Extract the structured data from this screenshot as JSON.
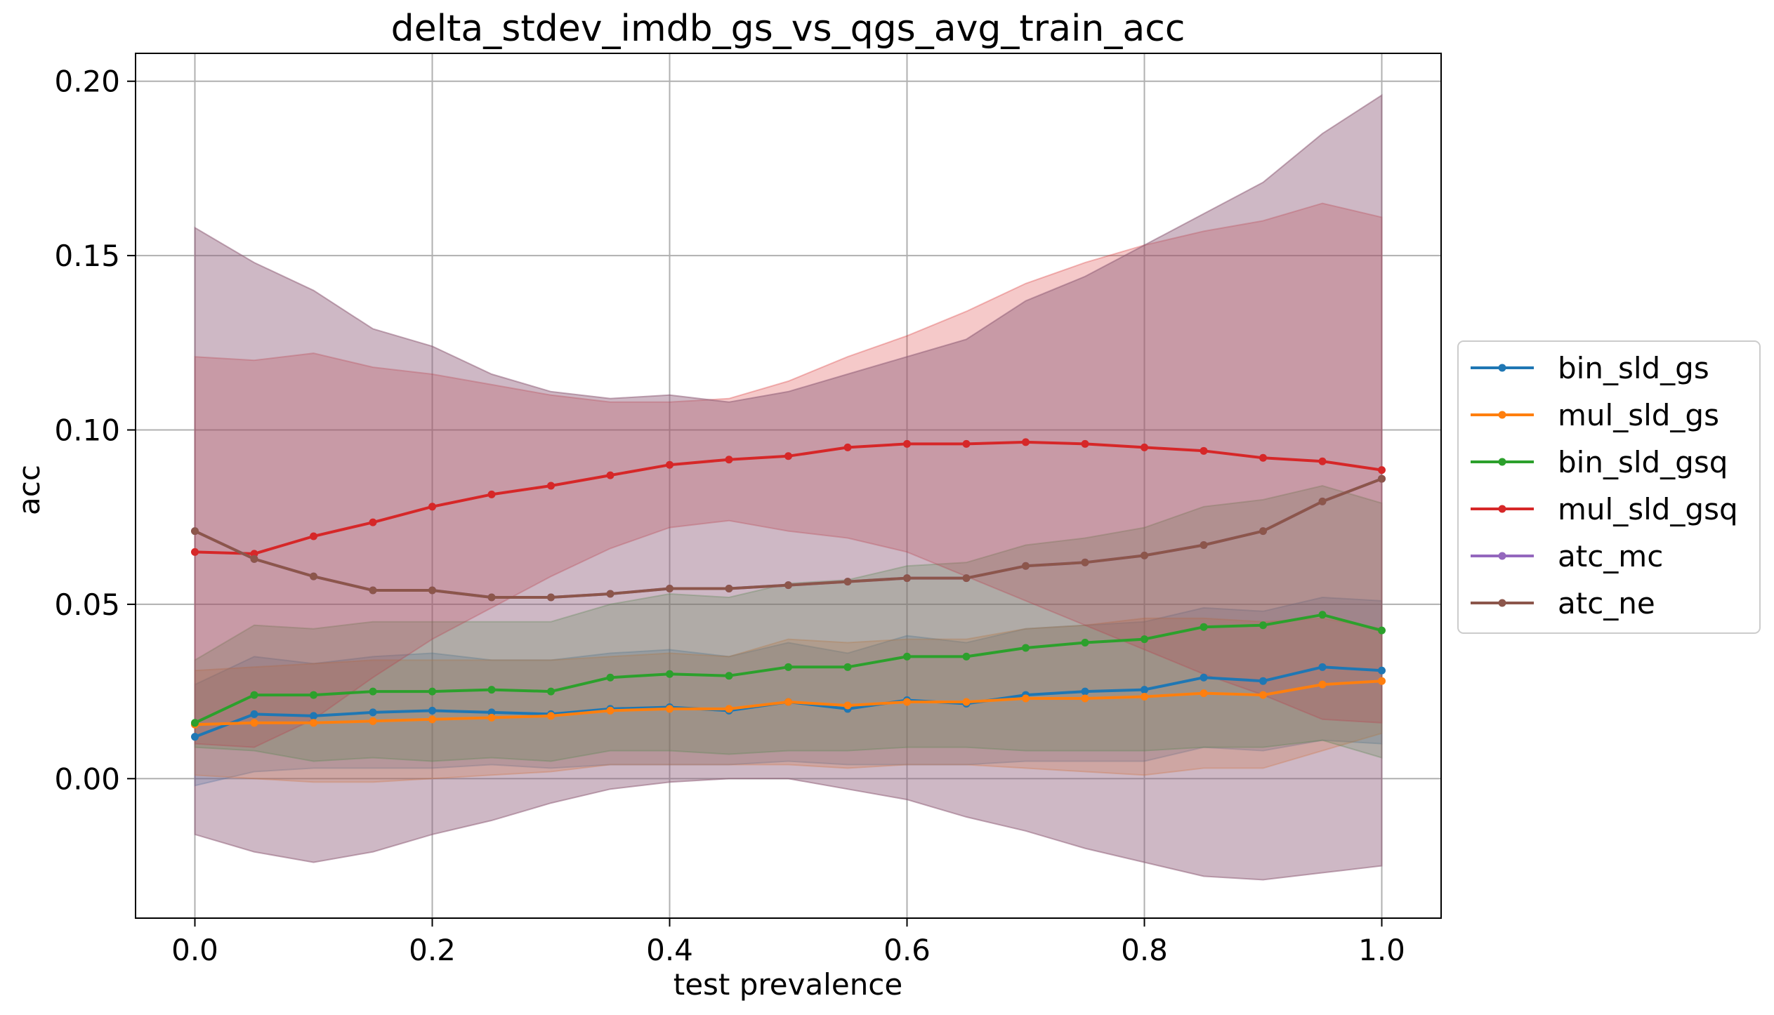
{
  "chart_data": {
    "type": "line",
    "title": "delta_stdev_imdb_gs_vs_qgs_avg_train_acc",
    "xlabel": "test prevalence",
    "ylabel": "acc",
    "xlim": [
      -0.05,
      1.05
    ],
    "ylim": [
      -0.04,
      0.208
    ],
    "xticks": [
      0.0,
      0.2,
      0.4,
      0.6,
      0.8,
      1.0
    ],
    "xtick_labels": [
      "0.0",
      "0.2",
      "0.4",
      "0.6",
      "0.8",
      "1.0"
    ],
    "yticks": [
      0.0,
      0.05,
      0.1,
      0.15,
      0.2
    ],
    "ytick_labels": [
      "0.00",
      "0.05",
      "0.10",
      "0.15",
      "0.20"
    ],
    "grid": true,
    "legend_position": "center-right outside",
    "x": [
      0.0,
      0.05,
      0.1,
      0.15,
      0.2,
      0.25,
      0.3,
      0.35,
      0.4,
      0.45,
      0.5,
      0.55,
      0.6,
      0.65,
      0.7,
      0.75,
      0.8,
      0.85,
      0.9,
      0.95,
      1.0
    ],
    "series": [
      {
        "name": "bin_sld_gs",
        "color": "#1f77b4",
        "values": [
          0.012,
          0.0185,
          0.018,
          0.019,
          0.0195,
          0.019,
          0.0185,
          0.02,
          0.0205,
          0.0195,
          0.022,
          0.02,
          0.0225,
          0.0215,
          0.024,
          0.025,
          0.0255,
          0.029,
          0.028,
          0.032,
          0.031
        ],
        "lower": [
          -0.002,
          0.002,
          0.003,
          0.003,
          0.003,
          0.004,
          0.003,
          0.004,
          0.004,
          0.004,
          0.005,
          0.004,
          0.004,
          0.004,
          0.005,
          0.005,
          0.005,
          0.009,
          0.008,
          0.011,
          0.01
        ],
        "upper": [
          0.027,
          0.035,
          0.033,
          0.035,
          0.036,
          0.034,
          0.034,
          0.036,
          0.037,
          0.035,
          0.039,
          0.036,
          0.041,
          0.039,
          0.043,
          0.044,
          0.045,
          0.049,
          0.048,
          0.052,
          0.051
        ]
      },
      {
        "name": "mul_sld_gs",
        "color": "#ff7f0e",
        "values": [
          0.0155,
          0.016,
          0.016,
          0.0165,
          0.017,
          0.0175,
          0.018,
          0.0195,
          0.02,
          0.02,
          0.022,
          0.021,
          0.022,
          0.022,
          0.023,
          0.023,
          0.0235,
          0.0245,
          0.024,
          0.027,
          0.028
        ],
        "lower": [
          0.001,
          0.0,
          -0.001,
          -0.001,
          0.0,
          0.001,
          0.002,
          0.004,
          0.004,
          0.004,
          0.004,
          0.003,
          0.004,
          0.004,
          0.003,
          0.002,
          0.001,
          0.003,
          0.003,
          0.008,
          0.013
        ],
        "upper": [
          0.031,
          0.032,
          0.033,
          0.034,
          0.034,
          0.034,
          0.034,
          0.035,
          0.036,
          0.035,
          0.04,
          0.039,
          0.04,
          0.04,
          0.043,
          0.044,
          0.046,
          0.046,
          0.045,
          0.046,
          0.043
        ]
      },
      {
        "name": "bin_sld_gsq",
        "color": "#2ca02c",
        "values": [
          0.016,
          0.024,
          0.024,
          0.025,
          0.025,
          0.0255,
          0.025,
          0.029,
          0.03,
          0.0295,
          0.032,
          0.032,
          0.035,
          0.035,
          0.0375,
          0.039,
          0.04,
          0.0435,
          0.044,
          0.047,
          0.0425
        ],
        "lower": [
          0.009,
          0.008,
          0.005,
          0.006,
          0.005,
          0.006,
          0.005,
          0.008,
          0.008,
          0.007,
          0.008,
          0.008,
          0.009,
          0.009,
          0.008,
          0.008,
          0.008,
          0.009,
          0.009,
          0.011,
          0.006
        ],
        "upper": [
          0.034,
          0.044,
          0.043,
          0.045,
          0.045,
          0.045,
          0.045,
          0.05,
          0.053,
          0.052,
          0.056,
          0.057,
          0.061,
          0.062,
          0.067,
          0.069,
          0.072,
          0.078,
          0.08,
          0.084,
          0.079
        ]
      },
      {
        "name": "mul_sld_gsq",
        "color": "#d62728",
        "values": [
          0.065,
          0.0645,
          0.0695,
          0.0735,
          0.078,
          0.0815,
          0.084,
          0.087,
          0.09,
          0.0915,
          0.0925,
          0.095,
          0.096,
          0.096,
          0.0965,
          0.096,
          0.095,
          0.094,
          0.092,
          0.091,
          0.0885
        ],
        "lower": [
          0.01,
          0.009,
          0.017,
          0.029,
          0.04,
          0.049,
          0.058,
          0.066,
          0.072,
          0.074,
          0.071,
          0.069,
          0.065,
          0.058,
          0.051,
          0.044,
          0.037,
          0.03,
          0.024,
          0.017,
          0.016
        ],
        "upper": [
          0.121,
          0.12,
          0.122,
          0.118,
          0.116,
          0.113,
          0.11,
          0.108,
          0.108,
          0.109,
          0.114,
          0.121,
          0.127,
          0.134,
          0.142,
          0.148,
          0.153,
          0.157,
          0.16,
          0.165,
          0.161
        ]
      },
      {
        "name": "atc_mc",
        "color": "#9467bd",
        "values": [
          0.071,
          0.063,
          0.058,
          0.054,
          0.054,
          0.052,
          0.052,
          0.053,
          0.0545,
          0.0545,
          0.0555,
          0.0565,
          0.0575,
          0.0575,
          0.061,
          0.062,
          0.064,
          0.067,
          0.071,
          0.0795,
          0.086
        ],
        "lower": [
          -0.016,
          -0.021,
          -0.024,
          -0.021,
          -0.016,
          -0.012,
          -0.007,
          -0.003,
          -0.001,
          0.0,
          0.0,
          -0.003,
          -0.006,
          -0.011,
          -0.015,
          -0.02,
          -0.024,
          -0.028,
          -0.029,
          -0.027,
          -0.025
        ],
        "upper": [
          0.158,
          0.148,
          0.14,
          0.129,
          0.124,
          0.116,
          0.111,
          0.109,
          0.11,
          0.108,
          0.111,
          0.116,
          0.121,
          0.126,
          0.137,
          0.144,
          0.153,
          0.162,
          0.171,
          0.185,
          0.196
        ]
      },
      {
        "name": "atc_ne",
        "color": "#8c564b",
        "values": [
          0.071,
          0.063,
          0.058,
          0.054,
          0.054,
          0.052,
          0.052,
          0.053,
          0.0545,
          0.0545,
          0.0555,
          0.0565,
          0.0575,
          0.0575,
          0.061,
          0.062,
          0.064,
          0.067,
          0.071,
          0.0795,
          0.086
        ],
        "lower": [
          -0.016,
          -0.021,
          -0.024,
          -0.021,
          -0.016,
          -0.012,
          -0.007,
          -0.003,
          -0.001,
          0.0,
          0.0,
          -0.003,
          -0.006,
          -0.011,
          -0.015,
          -0.02,
          -0.024,
          -0.028,
          -0.029,
          -0.027,
          -0.025
        ],
        "upper": [
          0.158,
          0.148,
          0.14,
          0.129,
          0.124,
          0.116,
          0.111,
          0.109,
          0.11,
          0.108,
          0.111,
          0.116,
          0.121,
          0.126,
          0.137,
          0.144,
          0.153,
          0.162,
          0.171,
          0.185,
          0.196
        ]
      }
    ]
  }
}
